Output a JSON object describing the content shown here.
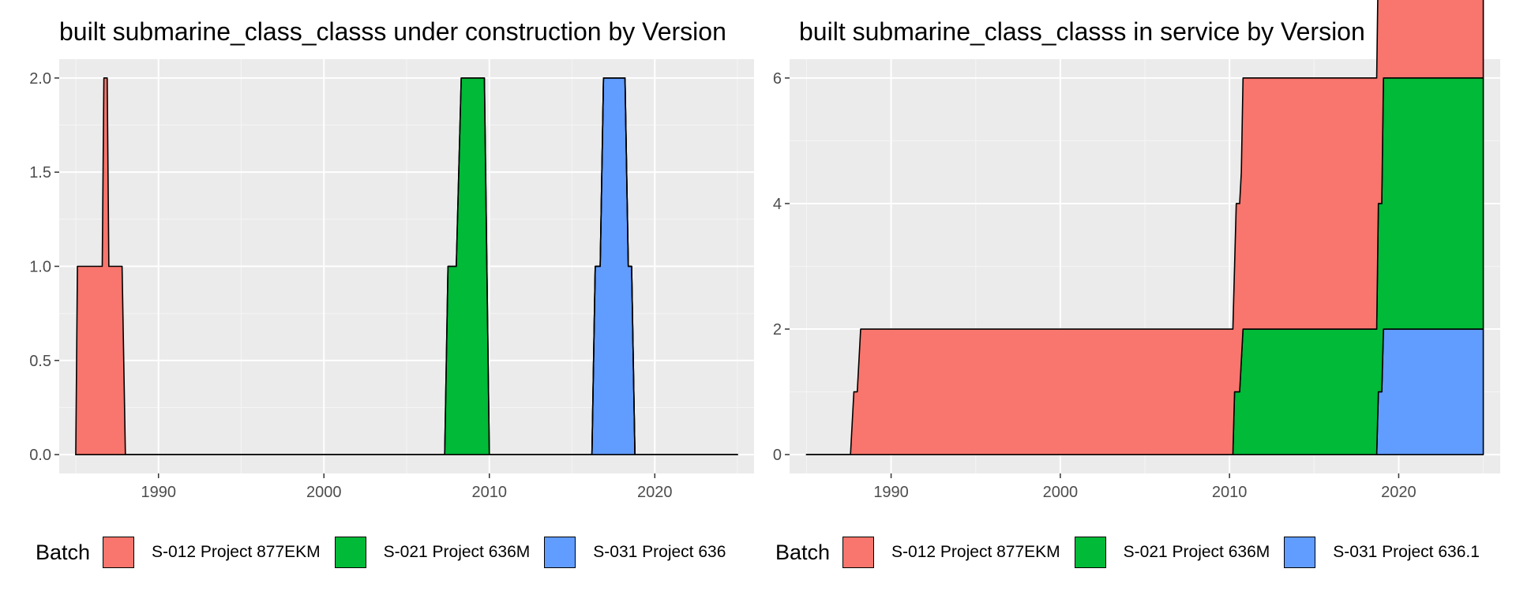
{
  "chart_data": [
    {
      "type": "area",
      "title": "built submarine_class_classs under construction by Version",
      "xlabel": "",
      "ylabel": "",
      "xlim": [
        1984,
        2026
      ],
      "ylim": [
        -0.1,
        2.1
      ],
      "x_ticks": [
        1990,
        2000,
        2010,
        2020
      ],
      "y_ticks": [
        0.0,
        0.5,
        1.0,
        1.5,
        2.0
      ],
      "y_tick_labels": [
        "0.0",
        "0.5",
        "1.0",
        "1.5",
        "2.0"
      ],
      "grid": true,
      "stacked": true,
      "legend_title": "Batch",
      "legend_position": "bottom",
      "series": [
        {
          "name": "S-012 Project 877EKM",
          "color": "#F8766D",
          "points": [
            [
              1985,
              0
            ],
            [
              1985.1,
              1
            ],
            [
              1986.6,
              1
            ],
            [
              1986.7,
              2
            ],
            [
              1986.9,
              2
            ],
            [
              1987,
              1
            ],
            [
              1987.8,
              1
            ],
            [
              1988,
              0
            ],
            [
              2025,
              0
            ]
          ]
        },
        {
          "name": "S-021 Project 636M",
          "color": "#00BA38",
          "points": [
            [
              1985,
              0
            ],
            [
              2007.3,
              0
            ],
            [
              2007.5,
              1
            ],
            [
              2008,
              1
            ],
            [
              2008.3,
              2
            ],
            [
              2009.7,
              2
            ],
            [
              2010,
              0
            ],
            [
              2025,
              0
            ]
          ]
        },
        {
          "name": "S-031 Project 636",
          "color": "#619CFF",
          "points": [
            [
              1985,
              0
            ],
            [
              2016.2,
              0
            ],
            [
              2016.4,
              1
            ],
            [
              2016.7,
              1
            ],
            [
              2016.9,
              2
            ],
            [
              2018.2,
              2
            ],
            [
              2018.4,
              1
            ],
            [
              2018.6,
              1
            ],
            [
              2018.8,
              0
            ],
            [
              2025,
              0
            ]
          ]
        }
      ]
    },
    {
      "type": "area",
      "title": "built submarine_class_classs in service by Version",
      "xlabel": "",
      "ylabel": "",
      "xlim": [
        1984,
        2026
      ],
      "ylim": [
        -0.3,
        6.3
      ],
      "x_ticks": [
        1990,
        2000,
        2010,
        2020
      ],
      "y_ticks": [
        0,
        2,
        4,
        6
      ],
      "y_tick_labels": [
        "0",
        "2",
        "4",
        "6"
      ],
      "grid": true,
      "stacked": true,
      "legend_title": "Batch",
      "legend_position": "bottom",
      "series": [
        {
          "name": "S-012 Project 877EKM",
          "color": "#F8766D",
          "points": [
            [
              1985,
              0
            ],
            [
              1987.6,
              0
            ],
            [
              1987.8,
              1
            ],
            [
              1988,
              1
            ],
            [
              1988.2,
              2
            ],
            [
              2010.3,
              2
            ],
            [
              2010.4,
              3
            ],
            [
              2010.7,
              3
            ],
            [
              2010.8,
              4
            ],
            [
              2018.8,
              4
            ],
            [
              2018.9,
              5
            ],
            [
              2019,
              5
            ],
            [
              2019.1,
              6
            ],
            [
              2025,
              6
            ]
          ]
        },
        {
          "name": "S-021 Project 636M",
          "color": "#00BA38",
          "points": [
            [
              1985,
              0
            ],
            [
              2010.2,
              0
            ],
            [
              2010.3,
              1
            ],
            [
              2010.6,
              1
            ],
            [
              2010.8,
              2
            ],
            [
              2018.7,
              2
            ],
            [
              2018.8,
              3
            ],
            [
              2019,
              3
            ],
            [
              2019.1,
              4
            ],
            [
              2025,
              4
            ]
          ]
        },
        {
          "name": "S-031 Project 636.1",
          "color": "#619CFF",
          "points": [
            [
              1985,
              0
            ],
            [
              2018.7,
              0
            ],
            [
              2018.8,
              1
            ],
            [
              2019,
              1
            ],
            [
              2019.1,
              2
            ],
            [
              2025,
              2
            ]
          ]
        }
      ]
    }
  ]
}
